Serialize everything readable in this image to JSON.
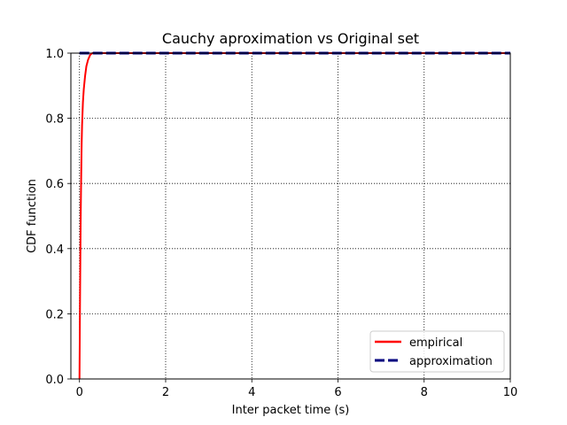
{
  "chart_data": {
    "type": "line",
    "title": "Cauchy aproximation vs Original set",
    "xlabel": "Inter packet time (s)",
    "ylabel": "CDF function",
    "xlim": [
      -0.2,
      10
    ],
    "ylim": [
      0,
      1.0
    ],
    "xticks": [
      0,
      2,
      4,
      6,
      8,
      10
    ],
    "yticks": [
      0.0,
      0.2,
      0.4,
      0.6,
      0.8,
      1.0
    ],
    "xtick_labels": [
      "0",
      "2",
      "4",
      "6",
      "8",
      "10"
    ],
    "ytick_labels": [
      "0.0",
      "0.2",
      "0.4",
      "0.6",
      "0.8",
      "1.0"
    ],
    "grid": true,
    "grid_style": "dotted",
    "legend_position": "lower-right",
    "series": [
      {
        "name": "empirical",
        "color": "#ff0000",
        "style": "solid",
        "x": [
          0.0,
          0.01,
          0.02,
          0.03,
          0.04,
          0.05,
          0.06,
          0.08,
          0.1,
          0.13,
          0.16,
          0.2,
          0.25,
          0.3,
          0.4,
          10
        ],
        "y": [
          0.0,
          0.2,
          0.38,
          0.52,
          0.63,
          0.72,
          0.78,
          0.85,
          0.89,
          0.93,
          0.96,
          0.98,
          0.995,
          1.0,
          1.0,
          1.0
        ]
      },
      {
        "name": "approximation",
        "color": "#00007f",
        "style": "dashed",
        "x": [
          0.0,
          10
        ],
        "y": [
          1.0,
          1.0
        ]
      }
    ]
  }
}
